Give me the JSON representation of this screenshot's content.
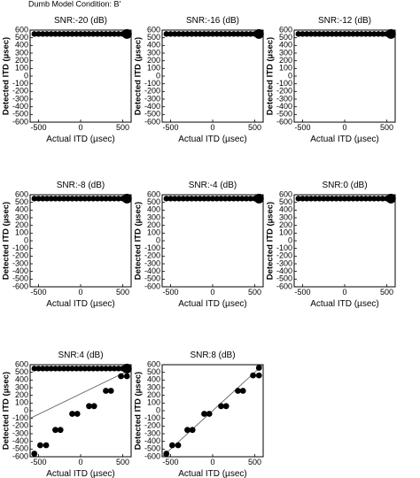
{
  "header": {
    "condition": "Dumb Model Condition: B'"
  },
  "chart_data": [
    {
      "type": "scatter",
      "title": "SNR:-20 (dB)",
      "xlabel": "Actual ITD (µsec)",
      "ylabel": "Detected ITD (µsec)",
      "xlim": [
        -600,
        600
      ],
      "ylim": [
        -600,
        600
      ],
      "xticks": [
        -500,
        0,
        500
      ],
      "yticks": [
        -600,
        -500,
        -400,
        -300,
        -200,
        -100,
        0,
        100,
        200,
        300,
        400,
        500,
        600
      ],
      "grid": false,
      "points": [
        [
          -550,
          550
        ],
        [
          -500,
          550
        ],
        [
          -450,
          550
        ],
        [
          -400,
          550
        ],
        [
          -350,
          550
        ],
        [
          -300,
          550
        ],
        [
          -250,
          550
        ],
        [
          -200,
          550
        ],
        [
          -150,
          550
        ],
        [
          -100,
          550
        ],
        [
          -50,
          550
        ],
        [
          0,
          550
        ],
        [
          50,
          550
        ],
        [
          100,
          550
        ],
        [
          150,
          550
        ],
        [
          200,
          550
        ],
        [
          250,
          550
        ],
        [
          300,
          550
        ],
        [
          350,
          550
        ],
        [
          400,
          550
        ],
        [
          450,
          550
        ],
        [
          500,
          550
        ],
        [
          550,
          550
        ]
      ]
    },
    {
      "type": "scatter",
      "title": "SNR:-16 (dB)",
      "xlabel": "Actual ITD (µsec)",
      "ylabel": "Detected ITD (µsec)",
      "xlim": [
        -600,
        600
      ],
      "ylim": [
        -600,
        600
      ],
      "xticks": [
        -500,
        0,
        500
      ],
      "yticks": [
        -600,
        -500,
        -400,
        -300,
        -200,
        -100,
        0,
        100,
        200,
        300,
        400,
        500,
        600
      ],
      "grid": false,
      "points": [
        [
          -550,
          550
        ],
        [
          -500,
          550
        ],
        [
          -450,
          550
        ],
        [
          -400,
          550
        ],
        [
          -350,
          550
        ],
        [
          -300,
          550
        ],
        [
          -250,
          550
        ],
        [
          -200,
          550
        ],
        [
          -150,
          550
        ],
        [
          -100,
          550
        ],
        [
          -50,
          550
        ],
        [
          0,
          550
        ],
        [
          50,
          550
        ],
        [
          100,
          550
        ],
        [
          150,
          550
        ],
        [
          200,
          550
        ],
        [
          250,
          550
        ],
        [
          300,
          550
        ],
        [
          350,
          550
        ],
        [
          400,
          550
        ],
        [
          450,
          550
        ],
        [
          500,
          550
        ],
        [
          550,
          550
        ]
      ]
    },
    {
      "type": "scatter",
      "title": "SNR:-12 (dB)",
      "xlabel": "Actual ITD (µsec)",
      "ylabel": "Detected ITD (µsec)",
      "xlim": [
        -600,
        600
      ],
      "ylim": [
        -600,
        600
      ],
      "xticks": [
        -500,
        0,
        500
      ],
      "yticks": [
        -600,
        -500,
        -400,
        -300,
        -200,
        -100,
        0,
        100,
        200,
        300,
        400,
        500,
        600
      ],
      "grid": false,
      "points": [
        [
          -550,
          550
        ],
        [
          -500,
          550
        ],
        [
          -450,
          550
        ],
        [
          -400,
          550
        ],
        [
          -350,
          550
        ],
        [
          -300,
          550
        ],
        [
          -250,
          550
        ],
        [
          -200,
          550
        ],
        [
          -150,
          550
        ],
        [
          -100,
          550
        ],
        [
          -50,
          550
        ],
        [
          0,
          550
        ],
        [
          50,
          550
        ],
        [
          100,
          550
        ],
        [
          150,
          550
        ],
        [
          200,
          550
        ],
        [
          250,
          550
        ],
        [
          300,
          550
        ],
        [
          350,
          550
        ],
        [
          400,
          550
        ],
        [
          450,
          550
        ],
        [
          500,
          550
        ],
        [
          550,
          550
        ]
      ]
    },
    {
      "type": "scatter",
      "title": "SNR:-8 (dB)",
      "xlabel": "Actual ITD (µsec)",
      "ylabel": "Detected ITD (µsec)",
      "xlim": [
        -600,
        600
      ],
      "ylim": [
        -600,
        600
      ],
      "xticks": [
        -500,
        0,
        500
      ],
      "yticks": [
        -600,
        -500,
        -400,
        -300,
        -200,
        -100,
        0,
        100,
        200,
        300,
        400,
        500,
        600
      ],
      "grid": false,
      "points": [
        [
          -550,
          550
        ],
        [
          -500,
          550
        ],
        [
          -450,
          550
        ],
        [
          -400,
          550
        ],
        [
          -350,
          550
        ],
        [
          -300,
          550
        ],
        [
          -250,
          550
        ],
        [
          -200,
          550
        ],
        [
          -150,
          550
        ],
        [
          -100,
          550
        ],
        [
          -50,
          550
        ],
        [
          0,
          550
        ],
        [
          50,
          550
        ],
        [
          100,
          550
        ],
        [
          150,
          550
        ],
        [
          200,
          550
        ],
        [
          250,
          550
        ],
        [
          300,
          550
        ],
        [
          350,
          550
        ],
        [
          400,
          550
        ],
        [
          450,
          550
        ],
        [
          500,
          550
        ],
        [
          550,
          550
        ]
      ]
    },
    {
      "type": "scatter",
      "title": "SNR:-4 (dB)",
      "xlabel": "Actual ITD (µsec)",
      "ylabel": "Detected ITD (µsec)",
      "xlim": [
        -600,
        600
      ],
      "ylim": [
        -600,
        600
      ],
      "xticks": [
        -500,
        0,
        500
      ],
      "yticks": [
        -600,
        -500,
        -400,
        -300,
        -200,
        -100,
        0,
        100,
        200,
        300,
        400,
        500,
        600
      ],
      "grid": false,
      "points": [
        [
          -550,
          550
        ],
        [
          -500,
          550
        ],
        [
          -450,
          550
        ],
        [
          -400,
          550
        ],
        [
          -350,
          550
        ],
        [
          -300,
          550
        ],
        [
          -250,
          550
        ],
        [
          -200,
          550
        ],
        [
          -150,
          550
        ],
        [
          -100,
          550
        ],
        [
          -50,
          550
        ],
        [
          0,
          550
        ],
        [
          50,
          550
        ],
        [
          100,
          550
        ],
        [
          150,
          550
        ],
        [
          200,
          550
        ],
        [
          250,
          550
        ],
        [
          300,
          550
        ],
        [
          350,
          550
        ],
        [
          400,
          550
        ],
        [
          450,
          550
        ],
        [
          500,
          550
        ],
        [
          550,
          550
        ]
      ]
    },
    {
      "type": "scatter",
      "title": "SNR:0 (dB)",
      "xlabel": "Actual ITD (µsec)",
      "ylabel": "Detected ITD (µsec)",
      "xlim": [
        -600,
        600
      ],
      "ylim": [
        -600,
        600
      ],
      "xticks": [
        -500,
        0,
        500
      ],
      "yticks": [
        -600,
        -500,
        -400,
        -300,
        -200,
        -100,
        0,
        100,
        200,
        300,
        400,
        500,
        600
      ],
      "grid": false,
      "points": [
        [
          -550,
          550
        ],
        [
          -500,
          550
        ],
        [
          -450,
          550
        ],
        [
          -400,
          550
        ],
        [
          -350,
          550
        ],
        [
          -300,
          550
        ],
        [
          -250,
          550
        ],
        [
          -200,
          550
        ],
        [
          -150,
          550
        ],
        [
          -100,
          550
        ],
        [
          -50,
          550
        ],
        [
          0,
          550
        ],
        [
          50,
          550
        ],
        [
          100,
          550
        ],
        [
          150,
          550
        ],
        [
          200,
          550
        ],
        [
          250,
          550
        ],
        [
          300,
          550
        ],
        [
          350,
          550
        ],
        [
          400,
          550
        ],
        [
          450,
          550
        ],
        [
          500,
          550
        ],
        [
          550,
          550
        ]
      ]
    },
    {
      "type": "scatter",
      "title": "SNR:4 (dB)",
      "xlabel": "Actual ITD (µsec)",
      "ylabel": "Detected ITD (µsec)",
      "xlim": [
        -600,
        600
      ],
      "ylim": [
        -600,
        600
      ],
      "xticks": [
        -500,
        0,
        500
      ],
      "yticks": [
        -600,
        -500,
        -400,
        -300,
        -200,
        -100,
        0,
        100,
        200,
        300,
        400,
        500,
        600
      ],
      "grid": false,
      "points": [
        [
          -550,
          550
        ],
        [
          -500,
          550
        ],
        [
          -450,
          550
        ],
        [
          -400,
          550
        ],
        [
          -350,
          550
        ],
        [
          -300,
          550
        ],
        [
          -250,
          550
        ],
        [
          -200,
          550
        ],
        [
          -150,
          550
        ],
        [
          -100,
          550
        ],
        [
          -50,
          550
        ],
        [
          0,
          550
        ],
        [
          50,
          550
        ],
        [
          100,
          550
        ],
        [
          150,
          550
        ],
        [
          200,
          550
        ],
        [
          250,
          550
        ],
        [
          300,
          550
        ],
        [
          350,
          550
        ],
        [
          400,
          550
        ],
        [
          450,
          550
        ],
        [
          500,
          550
        ],
        [
          550,
          550
        ],
        [
          -550,
          -560
        ],
        [
          -480,
          -450
        ],
        [
          -410,
          -450
        ],
        [
          -300,
          -250
        ],
        [
          -240,
          -250
        ],
        [
          -100,
          -40
        ],
        [
          -40,
          -40
        ],
        [
          100,
          60
        ],
        [
          160,
          60
        ],
        [
          300,
          260
        ],
        [
          360,
          260
        ],
        [
          480,
          450
        ],
        [
          550,
          450
        ]
      ],
      "reference_line": [
        [
          -600,
          -100
        ],
        [
          600,
          540
        ]
      ]
    },
    {
      "type": "scatter",
      "title": "SNR:8 (dB)",
      "xlabel": "Actual ITD (µsec)",
      "ylabel": "Detected ITD (µsec)",
      "xlim": [
        -600,
        600
      ],
      "ylim": [
        -600,
        600
      ],
      "xticks": [
        -500,
        0,
        500
      ],
      "yticks": [
        -600,
        -500,
        -400,
        -300,
        -200,
        -100,
        0,
        100,
        200,
        300,
        400,
        500,
        600
      ],
      "grid": false,
      "points": [
        [
          -550,
          -560
        ],
        [
          -480,
          -450
        ],
        [
          -410,
          -450
        ],
        [
          -300,
          -250
        ],
        [
          -240,
          -250
        ],
        [
          -100,
          -40
        ],
        [
          -40,
          -40
        ],
        [
          100,
          60
        ],
        [
          160,
          60
        ],
        [
          300,
          260
        ],
        [
          360,
          260
        ],
        [
          480,
          460
        ],
        [
          550,
          560
        ],
        [
          550,
          460
        ]
      ],
      "reference_line": [
        [
          -600,
          -600
        ],
        [
          600,
          600
        ]
      ]
    }
  ]
}
